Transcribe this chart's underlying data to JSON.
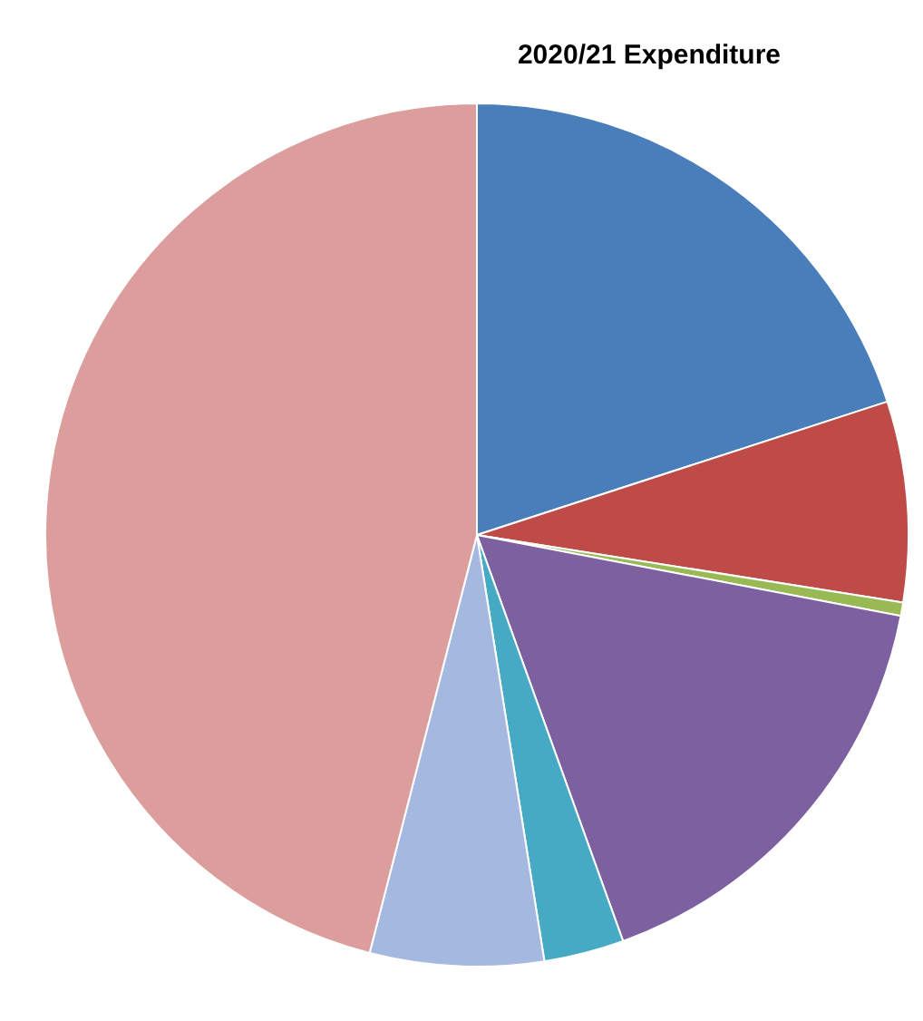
{
  "chart_data": {
    "type": "pie",
    "title": "2020/21 Expenditure",
    "categories": [
      null,
      null,
      null,
      null,
      null,
      null,
      null
    ],
    "values": [
      20,
      7.5,
      0.5,
      16.5,
      3,
      6.5,
      46
    ],
    "colors": [
      "#4a7ebb",
      "#be4b48",
      "#98b954",
      "#7d60a0",
      "#46aac5",
      "#a5b9e0",
      "#dc9e9c"
    ],
    "legend": false
  }
}
